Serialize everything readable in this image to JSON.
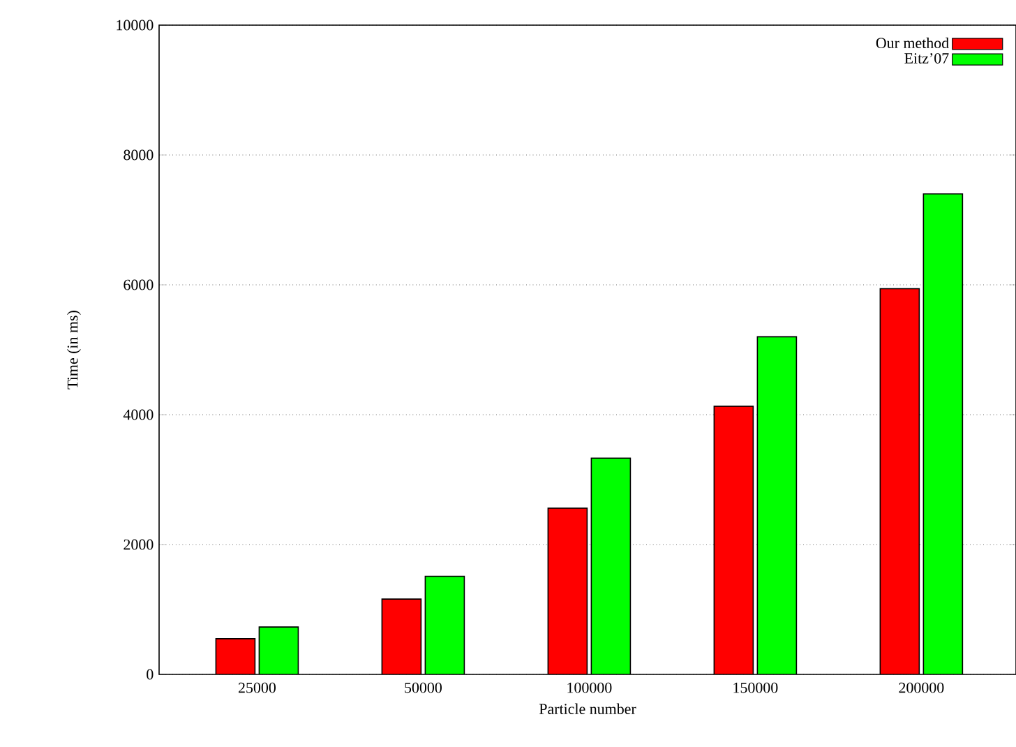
{
  "chart_data": {
    "type": "bar",
    "xlabel": "Particle number",
    "ylabel": "Time (in ms)",
    "categories": [
      "25000",
      "50000",
      "100000",
      "150000",
      "200000"
    ],
    "series": [
      {
        "name": "Our method",
        "color": "#ff0000",
        "values": [
          550,
          1160,
          2560,
          4130,
          5940
        ]
      },
      {
        "name": "Eitz’07",
        "color": "#00ff00",
        "values": [
          730,
          1510,
          3330,
          5200,
          7400
        ]
      }
    ],
    "ylim": [
      0,
      10000
    ],
    "yticks": [
      0,
      2000,
      4000,
      6000,
      8000,
      10000
    ],
    "grid": "y",
    "legend": "top right"
  }
}
